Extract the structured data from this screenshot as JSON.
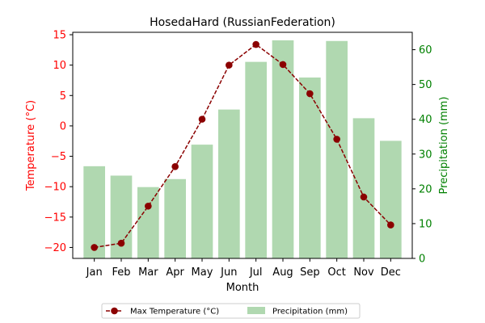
{
  "chart_data": {
    "type": "bar",
    "title": "HosedaHard (RussianFederation)",
    "xlabel": "Month",
    "categories": [
      "Jan",
      "Feb",
      "Mar",
      "Apr",
      "May",
      "Jun",
      "Jul",
      "Aug",
      "Sep",
      "Oct",
      "Nov",
      "Dec"
    ],
    "y_left": {
      "label": "Temperature (°C)",
      "ylim": [
        -21.8,
        15.4
      ],
      "ticks": [
        -20,
        -15,
        -10,
        -5,
        0,
        5,
        10,
        15
      ],
      "color": "#ff0000"
    },
    "y_right": {
      "label": "Precipitation (mm)",
      "ylim": [
        0,
        65
      ],
      "ticks": [
        0,
        10,
        20,
        30,
        40,
        50,
        60
      ],
      "color": "#008000"
    },
    "series": [
      {
        "name": "Max Temperature (°C)",
        "type": "line",
        "axis": "left",
        "color": "#8b0000",
        "values": [
          -20.0,
          -19.3,
          -13.2,
          -6.7,
          1.1,
          10.0,
          13.4,
          10.1,
          5.3,
          -2.2,
          -11.7,
          -16.3
        ]
      },
      {
        "name": "Precipitation (mm)",
        "type": "bar",
        "axis": "right",
        "color": "#b0d8b0",
        "values": [
          26.5,
          23.8,
          20.5,
          22.8,
          32.7,
          42.8,
          56.5,
          62.7,
          52.0,
          62.5,
          40.3,
          33.8
        ]
      }
    ],
    "legend": {
      "placement": "bottom-center",
      "entries": [
        "Max Temperature (°C)",
        "Precipitation (mm)"
      ]
    },
    "grid": false
  }
}
